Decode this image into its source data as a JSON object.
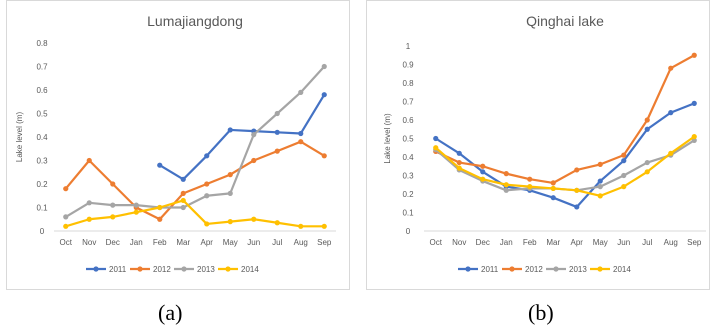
{
  "chart_data": [
    {
      "type": "line",
      "title": "Lumajiangdong",
      "xlabel": "",
      "ylabel": "Lake level (m)",
      "categories": [
        "Oct",
        "Nov",
        "Dec",
        "Jan",
        "Feb",
        "Mar",
        "Apr",
        "May",
        "Jun",
        "Jul",
        "Aug",
        "Sep"
      ],
      "ylim": [
        0,
        0.8
      ],
      "yticks": [
        "0",
        "0.1",
        "0.2",
        "0.3",
        "0.4",
        "0.5",
        "0.6",
        "0.7",
        "0.8"
      ],
      "grid": false,
      "legend": "bottom",
      "series": [
        {
          "name": "2011",
          "color": "#4472c4",
          "values": [
            null,
            null,
            null,
            null,
            0.28,
            0.22,
            0.32,
            0.43,
            0.425,
            0.42,
            0.415,
            0.58
          ]
        },
        {
          "name": "2012",
          "color": "#ed7d31",
          "values": [
            0.18,
            0.3,
            0.2,
            0.1,
            0.05,
            0.16,
            0.2,
            0.24,
            0.3,
            0.34,
            0.38,
            0.32
          ]
        },
        {
          "name": "2013",
          "color": "#a5a5a5",
          "values": [
            0.06,
            0.12,
            0.11,
            0.11,
            0.1,
            0.1,
            0.15,
            0.16,
            0.41,
            0.5,
            0.59,
            0.7
          ]
        },
        {
          "name": "2014",
          "color": "#ffc000",
          "values": [
            0.02,
            0.05,
            0.06,
            0.08,
            0.1,
            0.13,
            0.03,
            0.04,
            0.05,
            0.035,
            0.02,
            0.02
          ]
        }
      ]
    },
    {
      "type": "line",
      "title": "Qinghai lake",
      "xlabel": "",
      "ylabel": "Lake level (m)",
      "categories": [
        "Oct",
        "Nov",
        "Dec",
        "Jan",
        "Feb",
        "Mar",
        "Apr",
        "May",
        "Jun",
        "Jul",
        "Aug",
        "Sep"
      ],
      "ylim": [
        0,
        1
      ],
      "yticks": [
        "0",
        "0.1",
        "0.2",
        "0.3",
        "0.4",
        "0.5",
        "0.6",
        "0.7",
        "0.8",
        "0.9",
        "1"
      ],
      "grid": false,
      "legend": "bottom",
      "series": [
        {
          "name": "2011",
          "color": "#4472c4",
          "values": [
            0.5,
            0.42,
            0.32,
            0.24,
            0.22,
            0.18,
            0.13,
            0.27,
            0.38,
            0.55,
            0.64,
            0.69
          ]
        },
        {
          "name": "2012",
          "color": "#ed7d31",
          "values": [
            0.43,
            0.37,
            0.35,
            0.31,
            0.28,
            0.26,
            0.33,
            0.36,
            0.41,
            0.6,
            0.88,
            0.95
          ]
        },
        {
          "name": "2013",
          "color": "#a5a5a5",
          "values": [
            0.44,
            0.33,
            0.27,
            0.22,
            0.23,
            0.23,
            0.22,
            0.24,
            0.3,
            0.37,
            0.41,
            0.49
          ]
        },
        {
          "name": "2014",
          "color": "#ffc000",
          "values": [
            0.45,
            0.34,
            0.28,
            0.25,
            0.24,
            0.23,
            0.22,
            0.19,
            0.24,
            0.32,
            0.42,
            0.51
          ]
        }
      ]
    }
  ],
  "captions": [
    "(a)",
    "(b)"
  ]
}
